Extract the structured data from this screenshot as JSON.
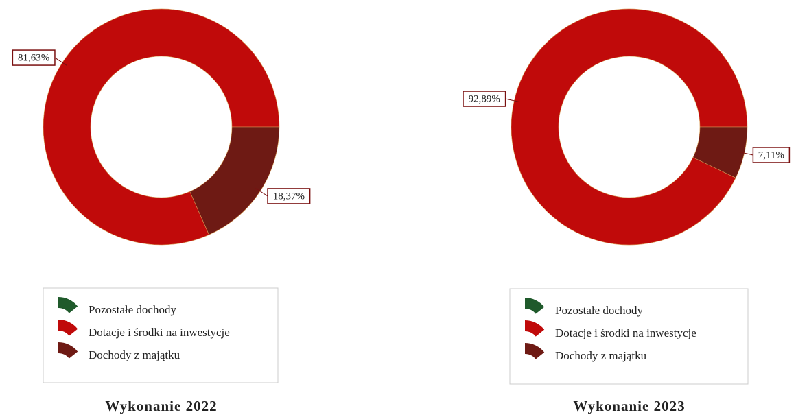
{
  "chart_data": [
    {
      "type": "donut",
      "title": "Wykonanie 2022",
      "categories": [
        "Pozostałe dochody",
        "Dotacje i środki na inwestycje",
        "Dochody z majątku"
      ],
      "values": [
        0,
        81.63,
        18.37
      ],
      "value_labels": [
        null,
        "81,63%",
        "18,37%"
      ],
      "colors": [
        "#1f5a2b",
        "#c00a0a",
        "#6e1a14"
      ]
    },
    {
      "type": "donut",
      "title": "Wykonanie 2023",
      "categories": [
        "Pozostałe dochody",
        "Dotacje i środki na inwestycje",
        "Dochody z majątku"
      ],
      "values": [
        0,
        92.89,
        7.11
      ],
      "value_labels": [
        null,
        "92,89%",
        "7,11%"
      ],
      "colors": [
        "#1f5a2b",
        "#c00a0a",
        "#6e1a14"
      ]
    }
  ]
}
